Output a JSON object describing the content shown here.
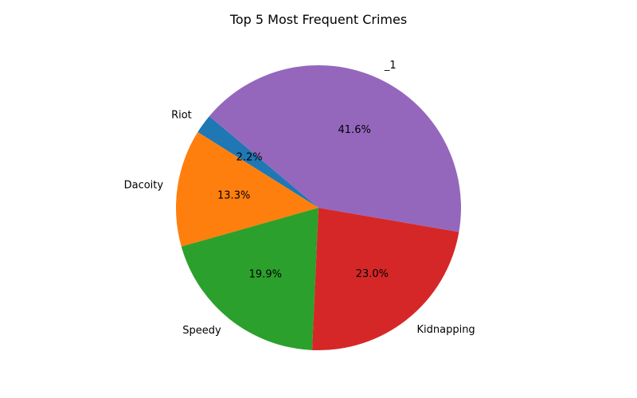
{
  "chart_data": {
    "type": "pie",
    "title": "Top 5 Most Frequent Crimes",
    "start_angle_deg": 140,
    "direction": "counterclockwise",
    "slices": [
      {
        "label": "Riot",
        "value": 2.2,
        "pct_label": "2.2%",
        "color": "#1f77b4"
      },
      {
        "label": "Dacoity",
        "value": 13.3,
        "pct_label": "13.3%",
        "color": "#ff7f0e"
      },
      {
        "label": "Speedy",
        "value": 19.9,
        "pct_label": "19.9%",
        "color": "#2ca02c"
      },
      {
        "label": "Kidnapping",
        "value": 23.0,
        "pct_label": "23.0%",
        "color": "#d62728"
      },
      {
        "label": "_1",
        "value": 41.6,
        "pct_label": "41.6%",
        "color": "#9467bd"
      }
    ]
  }
}
